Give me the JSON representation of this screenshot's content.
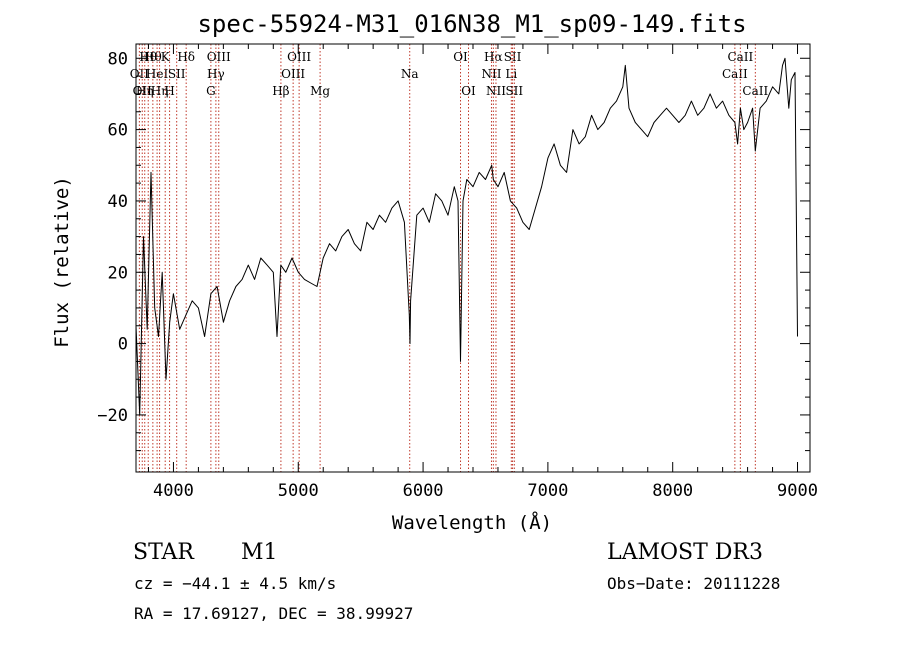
{
  "chart_data": {
    "type": "line",
    "title": "spec-55924-M31_016N38_M1_sp09-149.fits",
    "xlabel": "Wavelength (Å)",
    "ylabel": "Flux (relative)",
    "xlim": [
      3700,
      9100
    ],
    "ylim": [
      -36,
      84
    ],
    "x_ticks": [
      4000,
      5000,
      6000,
      7000,
      8000,
      9000
    ],
    "y_ticks": [
      -20,
      0,
      20,
      40,
      60,
      80
    ],
    "x_tick_labels": [
      "4000",
      "5000",
      "6000",
      "7000",
      "8000",
      "9000"
    ],
    "y_tick_labels": [
      "−20",
      "0",
      "20",
      "40",
      "60",
      "80"
    ],
    "series": [
      {
        "name": "spectrum",
        "x": [
          3700,
          3730,
          3760,
          3790,
          3820,
          3850,
          3880,
          3910,
          3940,
          3970,
          4000,
          4050,
          4100,
          4150,
          4200,
          4250,
          4300,
          4350,
          4400,
          4450,
          4500,
          4550,
          4600,
          4650,
          4700,
          4750,
          4800,
          4830,
          4860,
          4900,
          4950,
          5000,
          5050,
          5100,
          5150,
          5200,
          5250,
          5300,
          5350,
          5400,
          5450,
          5500,
          5550,
          5600,
          5650,
          5700,
          5750,
          5800,
          5850,
          5890,
          5895,
          5900,
          5950,
          6000,
          6050,
          6100,
          6150,
          6200,
          6250,
          6280,
          6300,
          6320,
          6350,
          6400,
          6450,
          6500,
          6550,
          6563,
          6600,
          6650,
          6700,
          6750,
          6800,
          6850,
          6900,
          6950,
          7000,
          7050,
          7100,
          7150,
          7200,
          7250,
          7300,
          7350,
          7400,
          7450,
          7500,
          7550,
          7600,
          7620,
          7650,
          7700,
          7750,
          7800,
          7850,
          7900,
          7950,
          8000,
          8050,
          8100,
          8150,
          8200,
          8250,
          8300,
          8350,
          8400,
          8450,
          8498,
          8520,
          8542,
          8570,
          8600,
          8640,
          8662,
          8700,
          8750,
          8800,
          8850,
          8880,
          8900,
          8930,
          8950,
          8980,
          9000
        ],
        "values": [
          5,
          -20,
          30,
          4,
          48,
          10,
          2,
          20,
          -10,
          6,
          14,
          4,
          8,
          12,
          10,
          2,
          14,
          16,
          6,
          12,
          16,
          18,
          22,
          18,
          24,
          22,
          20,
          2,
          22,
          20,
          24,
          20,
          18,
          17,
          16,
          24,
          28,
          26,
          30,
          32,
          28,
          26,
          34,
          32,
          36,
          34,
          38,
          40,
          34,
          8,
          0,
          12,
          36,
          38,
          34,
          42,
          40,
          36,
          44,
          40,
          -5,
          40,
          46,
          44,
          48,
          46,
          50,
          46,
          44,
          48,
          40,
          38,
          34,
          32,
          38,
          44,
          52,
          56,
          50,
          48,
          60,
          56,
          58,
          64,
          60,
          62,
          66,
          68,
          72,
          78,
          66,
          62,
          60,
          58,
          62,
          64,
          66,
          64,
          62,
          64,
          68,
          64,
          66,
          70,
          66,
          68,
          64,
          62,
          56,
          66,
          60,
          62,
          66,
          54,
          66,
          68,
          72,
          70,
          78,
          80,
          66,
          74,
          76,
          2
        ]
      }
    ],
    "line_markers": [
      {
        "x": 3727,
        "label": "OII",
        "row": 2
      },
      {
        "x": 3750,
        "label": "OII",
        "row": 3
      },
      {
        "x": 3770,
        "label": "Hη",
        "row": 3
      },
      {
        "x": 3798,
        "label": "Hθ",
        "row": 1
      },
      {
        "x": 3835,
        "label": "Hθ",
        "row": 1
      },
      {
        "x": 3869,
        "label": "HeI",
        "row": 2
      },
      {
        "x": 3889,
        "label": "Hη",
        "row": 3
      },
      {
        "x": 3934,
        "label": "K",
        "row": 1
      },
      {
        "x": 3969,
        "label": "H",
        "row": 3
      },
      {
        "x": 4026,
        "label": "SII",
        "row": 2
      },
      {
        "x": 4102,
        "label": "Hδ",
        "row": 1
      },
      {
        "x": 4300,
        "label": "G",
        "row": 3
      },
      {
        "x": 4340,
        "label": "Hγ",
        "row": 2
      },
      {
        "x": 4363,
        "label": "OIII",
        "row": 1
      },
      {
        "x": 4861,
        "label": "Hβ",
        "row": 3
      },
      {
        "x": 4959,
        "label": "OIII",
        "row": 2
      },
      {
        "x": 5007,
        "label": "OIII",
        "row": 1
      },
      {
        "x": 5175,
        "label": "Mg",
        "row": 3
      },
      {
        "x": 5893,
        "label": "Na",
        "row": 2
      },
      {
        "x": 6300,
        "label": "OI",
        "row": 1
      },
      {
        "x": 6364,
        "label": "OI",
        "row": 3
      },
      {
        "x": 6548,
        "label": "NII",
        "row": 2
      },
      {
        "x": 6563,
        "label": "Hα",
        "row": 1
      },
      {
        "x": 6584,
        "label": "NII",
        "row": 3
      },
      {
        "x": 6707,
        "label": "Li",
        "row": 2
      },
      {
        "x": 6717,
        "label": "SII",
        "row": 1
      },
      {
        "x": 6731,
        "label": "SII",
        "row": 3
      },
      {
        "x": 8498,
        "label": "CaII",
        "row": 2
      },
      {
        "x": 8542,
        "label": "CaII",
        "row": 1
      },
      {
        "x": 8662,
        "label": "CaII",
        "row": 3
      }
    ]
  },
  "info": {
    "object_class": "STAR",
    "subclass": "M1",
    "survey": "LAMOST DR3",
    "cz": "cz = −44.1 ± 4.5 km/s",
    "obs_date": "Obs−Date: 20111228",
    "coords": "RA =  17.69127, DEC =  38.99927"
  },
  "colors": {
    "spectrum": "#000000",
    "marker": "#c0392b",
    "axes": "#000000",
    "background": "#ffffff"
  }
}
